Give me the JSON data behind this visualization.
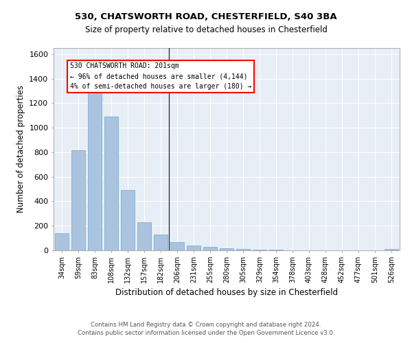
{
  "title1": "530, CHATSWORTH ROAD, CHESTERFIELD, S40 3BA",
  "title2": "Size of property relative to detached houses in Chesterfield",
  "xlabel": "Distribution of detached houses by size in Chesterfield",
  "ylabel": "Number of detached properties",
  "footer1": "Contains HM Land Registry data © Crown copyright and database right 2024.",
  "footer2": "Contains public sector information licensed under the Open Government Licence v3.0.",
  "categories": [
    "34sqm",
    "59sqm",
    "83sqm",
    "108sqm",
    "132sqm",
    "157sqm",
    "182sqm",
    "206sqm",
    "231sqm",
    "255sqm",
    "280sqm",
    "305sqm",
    "329sqm",
    "354sqm",
    "378sqm",
    "403sqm",
    "428sqm",
    "452sqm",
    "477sqm",
    "501sqm",
    "526sqm"
  ],
  "values": [
    140,
    815,
    1295,
    1090,
    490,
    230,
    130,
    65,
    40,
    30,
    18,
    10,
    5,
    3,
    2,
    1,
    1,
    0,
    0,
    0,
    13
  ],
  "bar_color": "#aac4e0",
  "bar_edge_color": "#7aaed0",
  "bg_color": "#e8eef5",
  "grid_color": "#ffffff",
  "vline_x_idx": 6.5,
  "annotation_title": "530 CHATSWORTH ROAD: 201sqm",
  "annotation_line2": "← 96% of detached houses are smaller (4,144)",
  "annotation_line3": "4% of semi-detached houses are larger (180) →",
  "ylim": [
    0,
    1650
  ],
  "yticks": [
    0,
    200,
    400,
    600,
    800,
    1000,
    1200,
    1400,
    1600
  ]
}
